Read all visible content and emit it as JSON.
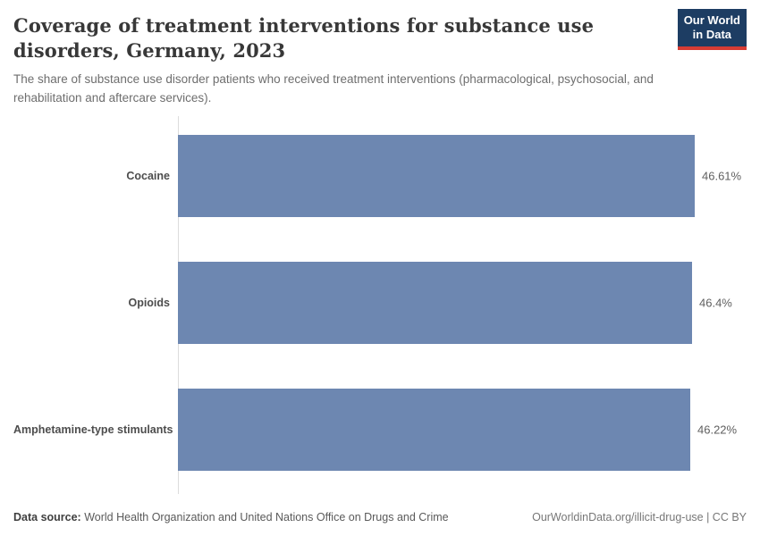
{
  "header": {
    "title": "Coverage of treatment interventions for substance use disorders, Germany, 2023",
    "subtitle": "The share of substance use disorder patients who received treatment interventions (pharmacological, psychosocial, and rehabilitation and aftercare services).",
    "logo": {
      "line1": "Our World",
      "line2": "in Data"
    }
  },
  "chart_data": {
    "type": "bar",
    "orientation": "horizontal",
    "title": "Coverage of treatment interventions for substance use disorders, Germany, 2023",
    "categories": [
      "Cocaine",
      "Opioids",
      "Amphetamine-type stimulants"
    ],
    "values": [
      46.61,
      46.4,
      46.22
    ],
    "value_labels": [
      "46.61%",
      "46.4%",
      "46.22%"
    ],
    "unit": "%",
    "xlabel": "",
    "ylabel": "",
    "xlim": [
      0,
      46.61
    ],
    "grid": false,
    "legend": false
  },
  "footer": {
    "source_label": "Data source:",
    "source_text": "World Health Organization and United Nations Office on Drugs and Crime",
    "credit": "OurWorldinData.org/illicit-drug-use | CC BY"
  },
  "colors": {
    "bar": "#6d87b1",
    "axis": "#dcdcdc",
    "logo_bg": "#1d3d63",
    "logo_stripe": "#d73c34"
  }
}
